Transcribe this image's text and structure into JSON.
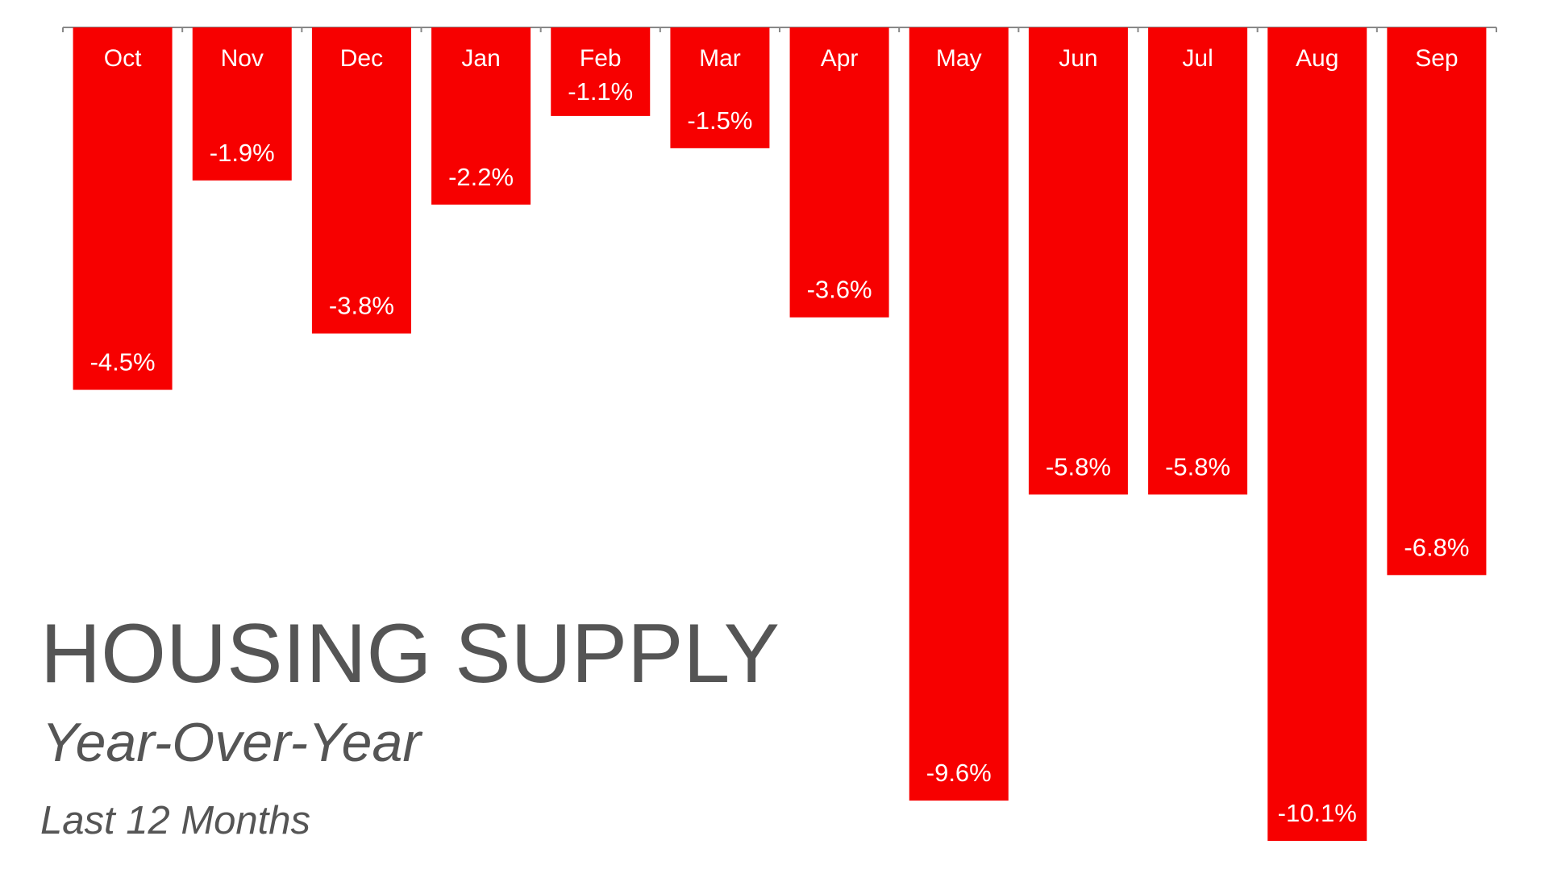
{
  "chart_data": {
    "type": "bar",
    "title": "HOUSING SUPPLY",
    "subtitle": "Year-Over-Year",
    "period": "Last 12 Months",
    "categories": [
      "Oct",
      "Nov",
      "Dec",
      "Jan",
      "Feb",
      "Mar",
      "Apr",
      "May",
      "Jun",
      "Jul",
      "Aug",
      "Sep"
    ],
    "values": [
      -4.5,
      -1.9,
      -3.8,
      -2.2,
      -1.1,
      -1.5,
      -3.6,
      -9.6,
      -5.8,
      -5.8,
      -10.1,
      -6.8
    ],
    "value_labels": [
      "-4.5%",
      "-1.9%",
      "-3.8%",
      "-2.2%",
      "-1.1%",
      "-1.5%",
      "-3.6%",
      "-9.6%",
      "-5.8%",
      "-5.8%",
      "-10.1%",
      "-6.8%"
    ],
    "color": "#f70000",
    "ylim": [
      -10.1,
      0
    ]
  }
}
